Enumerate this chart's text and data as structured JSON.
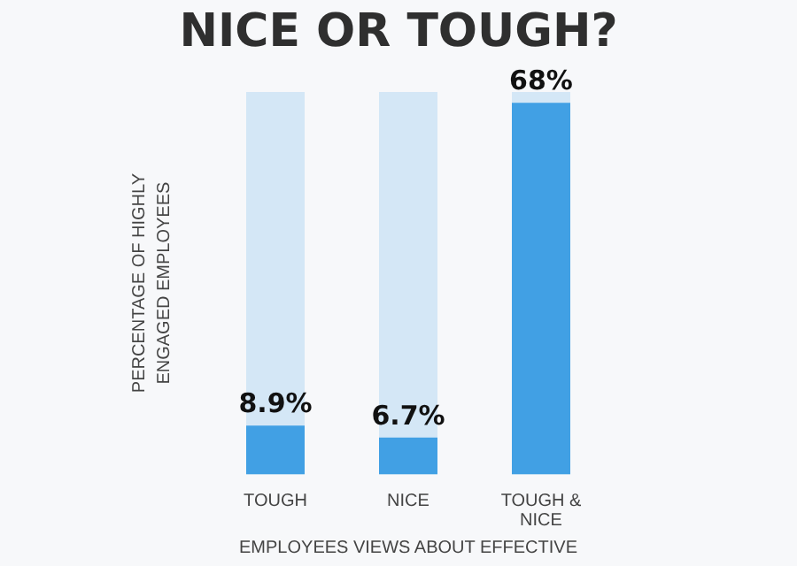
{
  "chart_data": {
    "type": "bar",
    "title": "NICE OR TOUGH?",
    "ylabel": "PERCENTAGE OF HIGHLY\nENGAGED EMPLOYEES",
    "xlabel": "EMPLOYEES VIEWS ABOUT EFFECTIVE",
    "categories": [
      "TOUGH",
      "NICE",
      "TOUGH &\nNICE"
    ],
    "values": [
      8.9,
      6.7,
      68
    ],
    "value_labels": [
      "8.9%",
      "6.7%",
      "68%"
    ],
    "color": "#41a0e4"
  }
}
